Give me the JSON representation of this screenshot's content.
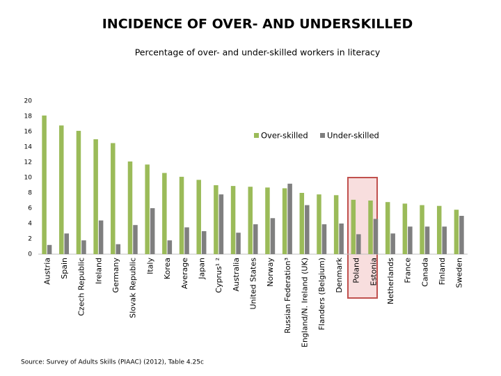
{
  "chart_data": {
    "type": "bar",
    "title": "INCIDENCE OF OVER- AND UNDERSKILLED",
    "subtitle": "Percentage of over- and under-skilled workers in literacy",
    "source": "Source: Survey of Adults Skills (PIAAC) (2012), Table 4.25c",
    "categories": [
      "Austria",
      "Spain",
      "Czech Republic",
      "Ireland",
      "Germany",
      "Slovak Republic",
      "Italy",
      "Korea",
      "Average",
      "Japan",
      "Cyprus¹ ²",
      "Australia",
      "United States",
      "Norway",
      "Russian Federation³",
      "England/N. Ireland (UK)",
      "Flanders (Belgium)",
      "Denmark",
      "Poland",
      "Estonia",
      "Netherlands",
      "France",
      "Canada",
      "Finland",
      "Sweden"
    ],
    "series": [
      {
        "name": "Over-skilled",
        "color": "#9bbb59",
        "values": [
          18.1,
          16.8,
          16.1,
          15.0,
          14.5,
          12.1,
          11.7,
          10.6,
          10.1,
          9.7,
          9.0,
          8.9,
          8.8,
          8.7,
          8.6,
          8.0,
          7.8,
          7.7,
          7.1,
          7.0,
          6.8,
          6.6,
          6.4,
          6.3,
          5.8
        ]
      },
      {
        "name": "Under-skilled",
        "color": "#7f7f7f",
        "values": [
          1.2,
          2.7,
          1.8,
          4.4,
          1.3,
          3.8,
          6.0,
          1.8,
          3.5,
          3.0,
          7.8,
          2.8,
          3.9,
          4.7,
          9.2,
          6.4,
          3.9,
          4.0,
          2.6,
          4.6,
          2.7,
          3.6,
          3.6,
          3.6,
          5.0
        ]
      }
    ],
    "ylim": [
      0,
      20
    ],
    "yticks": [
      0,
      2,
      4,
      6,
      8,
      10,
      12,
      14,
      16,
      18,
      20
    ],
    "grid": false
  }
}
